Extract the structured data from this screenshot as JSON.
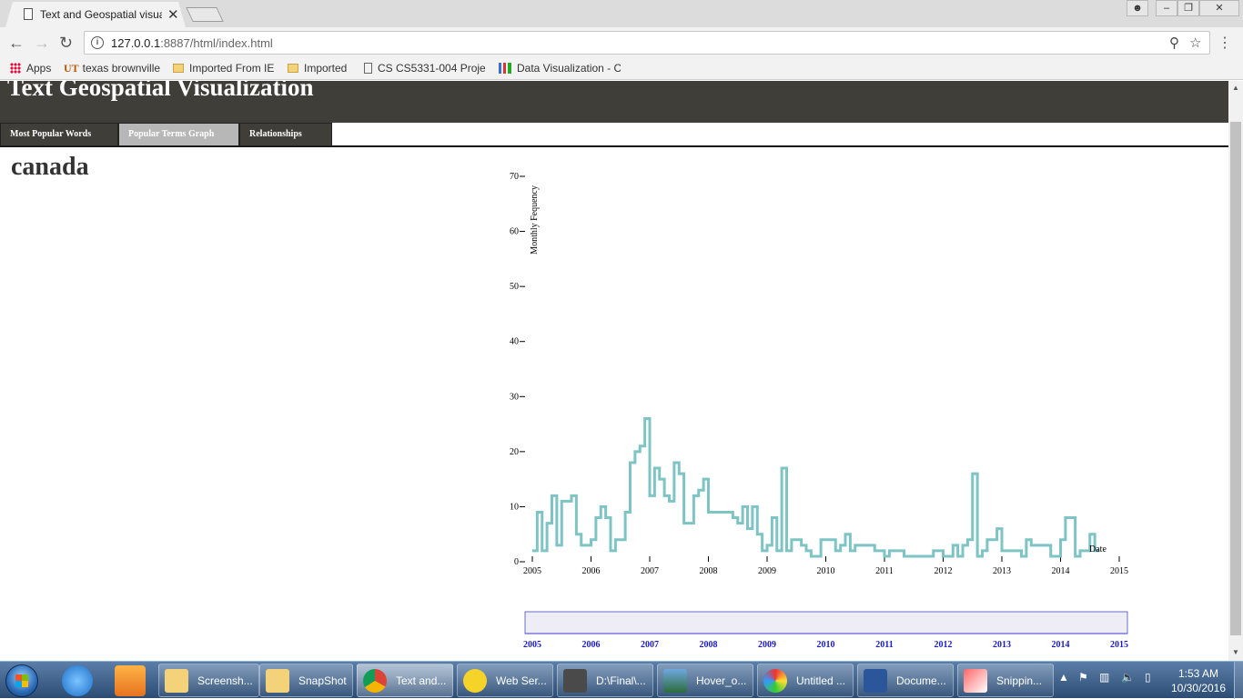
{
  "browser": {
    "tab_title": "Text and Geospatial visua",
    "url_host": "127.0.0.1",
    "url_rest": ":8887/html/index.html",
    "bookmarks": [
      "Apps",
      "texas brownville",
      "Imported From IE",
      "Imported",
      "CS CS5331-004 Projec",
      "Data Visualization - C"
    ]
  },
  "app": {
    "title": "Text Geospatial Visualization",
    "nav": [
      "Most Popular Words",
      "Popular Terms Graph",
      "Relationships"
    ],
    "active_nav": "Popular Terms Graph",
    "term": "canada"
  },
  "chart_data": {
    "type": "line",
    "title": "",
    "ylabel": "Monthly Fequency",
    "xlabel": "Date",
    "ylim": [
      0,
      70
    ],
    "yticks": [
      0,
      10,
      20,
      30,
      40,
      50,
      60,
      70
    ],
    "xlim": [
      "2005-01",
      "2015-01"
    ],
    "xticks": [
      "2005",
      "2006",
      "2007",
      "2008",
      "2009",
      "2010",
      "2011",
      "2012",
      "2013",
      "2014",
      "2015"
    ],
    "line_color": "#7fc4c4",
    "grid": false,
    "series": [
      {
        "x": [
          "2005-01",
          "2005-02",
          "2005-03",
          "2005-04",
          "2005-05",
          "2005-06",
          "2005-07",
          "2005-08",
          "2005-09",
          "2005-10",
          "2005-11",
          "2005-12",
          "2006-01",
          "2006-02",
          "2006-03",
          "2006-04",
          "2006-05",
          "2006-06",
          "2006-07",
          "2006-08",
          "2006-09",
          "2006-10",
          "2006-11",
          "2006-12",
          "2007-01",
          "2007-02",
          "2007-03",
          "2007-04",
          "2007-05",
          "2007-06",
          "2007-07",
          "2007-08",
          "2007-09",
          "2007-10",
          "2007-11",
          "2007-12",
          "2008-01",
          "2008-02",
          "2008-03",
          "2008-04",
          "2008-05",
          "2008-06",
          "2008-07",
          "2008-08",
          "2008-09",
          "2008-10",
          "2008-11",
          "2008-12",
          "2009-01",
          "2009-02",
          "2009-03",
          "2009-04",
          "2009-05",
          "2009-06",
          "2009-07",
          "2009-08",
          "2009-09",
          "2009-10",
          "2009-11",
          "2009-12",
          "2010-01",
          "2010-02",
          "2010-03",
          "2010-04",
          "2010-05",
          "2010-06",
          "2010-07",
          "2010-08",
          "2010-09",
          "2010-10",
          "2010-11",
          "2010-12",
          "2011-01",
          "2011-02",
          "2011-03",
          "2011-04",
          "2011-05",
          "2011-06",
          "2011-07",
          "2011-08",
          "2011-09",
          "2011-10",
          "2011-11",
          "2011-12",
          "2012-01",
          "2012-02",
          "2012-03",
          "2012-04",
          "2012-05",
          "2012-06",
          "2012-07",
          "2012-08",
          "2012-09",
          "2012-10",
          "2012-11",
          "2012-12",
          "2013-01",
          "2013-02",
          "2013-03",
          "2013-04",
          "2013-05",
          "2013-06",
          "2013-07",
          "2013-08",
          "2013-09",
          "2013-10",
          "2013-11",
          "2013-12",
          "2014-01",
          "2014-02",
          "2014-03",
          "2014-04",
          "2014-05",
          "2014-06",
          "2014-07",
          "2014-08"
        ],
        "y": [
          2,
          9,
          2,
          7,
          12,
          3,
          11,
          11,
          12,
          5,
          3,
          3,
          4,
          8,
          10,
          8,
          2,
          4,
          4,
          9,
          18,
          20,
          21,
          26,
          12,
          17,
          15,
          12,
          11,
          18,
          16,
          7,
          7,
          12,
          13,
          15,
          9,
          9,
          9,
          9,
          9,
          8,
          7,
          10,
          6,
          10,
          5,
          2,
          3,
          8,
          2,
          17,
          2,
          4,
          4,
          3,
          2,
          1,
          1,
          4,
          4,
          4,
          2,
          3,
          5,
          2,
          3,
          3,
          3,
          3,
          2,
          2,
          1,
          2,
          2,
          2,
          1,
          1,
          1,
          1,
          1,
          1,
          2,
          2,
          1,
          1,
          3,
          1,
          3,
          4,
          16,
          1,
          2,
          4,
          4,
          6,
          2,
          2,
          2,
          2,
          1,
          4,
          3,
          3,
          3,
          3,
          1,
          1,
          4,
          8,
          8,
          1,
          2,
          2,
          5,
          2
        ]
      }
    ]
  },
  "brush": {
    "xticks": [
      "2005",
      "2006",
      "2007",
      "2008",
      "2009",
      "2010",
      "2011",
      "2012",
      "2013",
      "2014",
      "2015"
    ]
  },
  "taskbar": {
    "items": [
      "Screensh...",
      "SnapShot",
      "Text and...",
      "Web Ser...",
      "D:\\Final\\...",
      "Hover_o...",
      "Untitled ...",
      "Docume...",
      "Snippin..."
    ],
    "time": "1:53 AM",
    "date": "10/30/2016"
  }
}
